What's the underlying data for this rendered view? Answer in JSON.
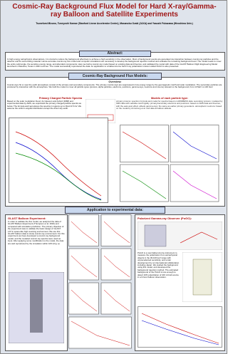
{
  "header": {
    "title": "Cosmic-Ray Background Flux Model for Hard X-ray/Gamma-ray Balloon and Satellite Experiments",
    "authors": "Tsunefumi Mizuno, Tuneyoshi Kamae (Stanford Linear Accelerator Center), Masanobu Ozaki (JAXA) and Yasushi Fukazawa (Hiroshima Univ.)"
  },
  "abstract": {
    "heading": "Abstract:",
    "text": "In high energy astrophysics observations, it is crucial to reduce the background effectively to achieve a high sensitivity in the observation. Most of background events are generated via interaction between cosmic-ray particles and the detector and its surrounding material. Hence accurate cosmic-ray flux model and computer simulations are necessary to develop the background rejection method and evaluate the remaining background level. The model needs to cover the entire solid angle, the sensitive energy range, and abundant components. Here we built a cosmic-ray model based on existing data and theories, and validated the model with data of the GLAST Balloon Flight Engineering Model launched in Palestine, Texas in 2001 summer. The model successfully reproduced the data. An application to a balloon-borne hard X-ray polarization mission called PoGO is also presented."
  },
  "models": {
    "heading": "Cosmic-Ray Background Flux Models:",
    "overview_heading": "Overview:",
    "overview_text": "Cosmic-rays hit or near the earth atmosphere consist of the primary and secondary components. The primary cosmic-rays are suppressed in low energy range by the geomagnetic cutoff and solar modulation. The secondary particles are produced by interaction with the atmosphere. We built the model to cover all particle types (protons, alpha particles, electrons, positrons, gamma-rays, neutrons and muons) relevant to the background, from 10 MeV to 100 GeV.",
    "spectra_heading": "Primary Charged Particle Spectra",
    "spectra_text": "Based on the solar modulation theory by Gleeson and Axford (1968) and experimental data by AMS, we expressed the primary charged particle spectra as below. The formula well reproduces the spectra in regions up to Rcut=4.5 GV. We assume the uniform angular distribution except the direct sky earth.",
    "types_heading": "Models of each particle type:",
    "types_text": "primary protons: spectrum formula and model for spectra based on AMS/BESS data. secondary protons: modeled by AMS data with variable cutoff rigidity. primary/secondary electrons and positrons: based on AMS data and theories, with the east-west effect. albedo gamma-rays: the same as earlier primary generators. atmospheric neutrons: based on the model by Armstrong et al. and data at balloon altitude."
  },
  "application": {
    "heading": "Application to experimental data:"
  },
  "glast": {
    "heading": "GLAST Balloon Experiment:",
    "text": "In order to validate the flux model, we analyzed the data of GLAST Balloon Experiment (Thompson et al. 2002) and compared with simulation prediction. The primary objective of the experiment was to validate the basic design of GLAST LAT in space-like high counting environment. We use this GLAST balloon data to study cosmic-ray environment. For this experiment we have developed a cosmic-ray background model, and the modeled cosmic-ray spectra were used as input. After applying some modification to the model, the data are well reproduced by the simulation within 10% (Fig. a)."
  },
  "pogo": {
    "heading": "Polarized Gamma-ray Observer (PoGO):",
    "text": "PoGO is a new balloon-borne instrument to measure the polarization from astrophysical objects in the 30-100 keV range with unprecedented sensitivity, and under development by an international collaboration including Japan. We studied the background using this model, and developed the background rejection method. The estimated background of the PoGO is low enough to detect 10% polarization of 100 mCrab source in a 6-hour balloon observation."
  }
}
